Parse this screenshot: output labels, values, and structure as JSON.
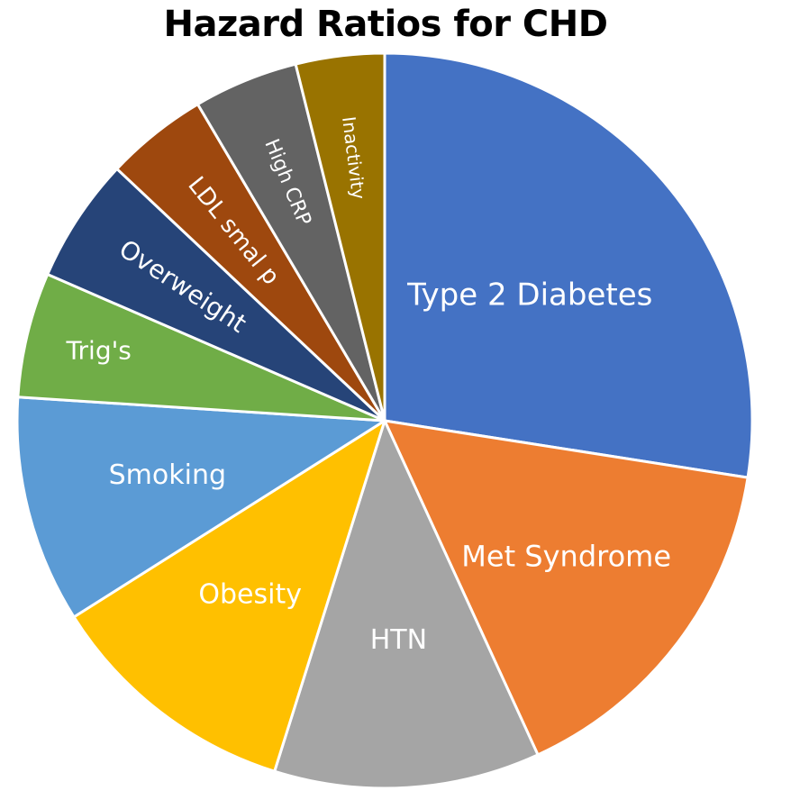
{
  "title": "Hazard Ratios for CHD",
  "chart_data": {
    "type": "pie",
    "title": "Hazard Ratios for CHD",
    "start_angle_deg": 0,
    "direction": "clockwise",
    "categories": [
      "Type 2 Diabetes",
      "Met Syndrome",
      "HTN",
      "Obesity",
      "Smoking",
      "Trig's",
      "Overweight",
      "LDL smal p",
      "High CRP",
      "Inactivity"
    ],
    "values": [
      27.5,
      15.7,
      11.7,
      11.2,
      10.0,
      5.5,
      5.5,
      4.5,
      4.6,
      3.9
    ],
    "value_units": "approximate percent share of pie (estimated from slice angles)",
    "colors": [
      "#4472C4",
      "#ED7D31",
      "#A5A5A5",
      "#FFC000",
      "#5B9BD5",
      "#70AD47",
      "#264478",
      "#9E480E",
      "#636363",
      "#997300"
    ],
    "label_color": "#FFFFFF",
    "legend": "none",
    "data_labels": "category names inside slices"
  }
}
